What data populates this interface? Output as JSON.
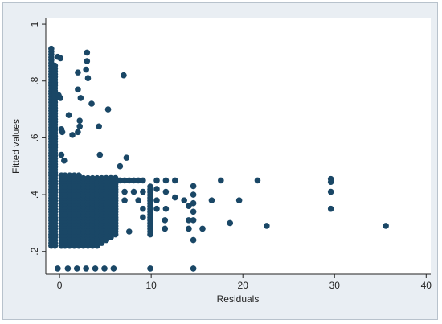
{
  "chart_data": {
    "type": "scatter",
    "xlabel": "Residuals",
    "ylabel": "Fitted values",
    "xlim": [
      -1.5,
      40.5
    ],
    "ylim": [
      0.12,
      1.02
    ],
    "x_ticks": [
      {
        "value": 0,
        "label": "0"
      },
      {
        "value": 10,
        "label": "10"
      },
      {
        "value": 20,
        "label": "20"
      },
      {
        "value": 30,
        "label": "30"
      },
      {
        "value": 40,
        "label": "40"
      }
    ],
    "y_ticks": [
      {
        "value": 0.2,
        "label": ".2"
      },
      {
        "value": 0.4,
        "label": ".4"
      },
      {
        "value": 0.6,
        "label": ".6"
      },
      {
        "value": 0.8,
        "label": ".8"
      },
      {
        "value": 1.0,
        "label": "1"
      }
    ],
    "grid": "none",
    "marker_color": "#1a4766",
    "bands": [
      {
        "x": -0.9,
        "ymin": 0.22,
        "ymax": 0.92
      },
      {
        "x": -0.5,
        "ymin": 0.22,
        "ymax": 0.86
      },
      {
        "x": 0.2,
        "ymin": 0.22,
        "ymax": 0.47
      },
      {
        "x": 0.6,
        "ymin": 0.22,
        "ymax": 0.47
      },
      {
        "x": 1.1,
        "ymin": 0.22,
        "ymax": 0.47
      },
      {
        "x": 1.6,
        "ymin": 0.22,
        "ymax": 0.47
      },
      {
        "x": 2.1,
        "ymin": 0.22,
        "ymax": 0.47
      },
      {
        "x": 2.6,
        "ymin": 0.22,
        "ymax": 0.46
      },
      {
        "x": 3.1,
        "ymin": 0.22,
        "ymax": 0.46
      },
      {
        "x": 3.6,
        "ymin": 0.22,
        "ymax": 0.46
      },
      {
        "x": 4.1,
        "ymin": 0.22,
        "ymax": 0.46
      },
      {
        "x": 4.6,
        "ymin": 0.23,
        "ymax": 0.46
      },
      {
        "x": 5.1,
        "ymin": 0.24,
        "ymax": 0.46
      },
      {
        "x": 5.6,
        "ymin": 0.25,
        "ymax": 0.46
      },
      {
        "x": 6.1,
        "ymin": 0.26,
        "ymax": 0.46
      },
      {
        "x": 9.9,
        "ymin": 0.26,
        "ymax": 0.43
      }
    ],
    "points": [
      {
        "x": -0.2,
        "y": 0.885
      },
      {
        "x": 0.1,
        "y": 0.88
      },
      {
        "x": -0.1,
        "y": 0.75
      },
      {
        "x": 0.1,
        "y": 0.74
      },
      {
        "x": 0.2,
        "y": 0.63
      },
      {
        "x": 0.3,
        "y": 0.62
      },
      {
        "x": 0.2,
        "y": 0.54
      },
      {
        "x": 0.5,
        "y": 0.52
      },
      {
        "x": 1.0,
        "y": 0.68
      },
      {
        "x": 1.4,
        "y": 0.61
      },
      {
        "x": 2.0,
        "y": 0.83
      },
      {
        "x": 2.0,
        "y": 0.77
      },
      {
        "x": 2.3,
        "y": 0.74
      },
      {
        "x": 2.2,
        "y": 0.66
      },
      {
        "x": 2.2,
        "y": 0.64
      },
      {
        "x": 2.0,
        "y": 0.62
      },
      {
        "x": 3.0,
        "y": 0.9
      },
      {
        "x": 3.0,
        "y": 0.87
      },
      {
        "x": 2.9,
        "y": 0.84
      },
      {
        "x": 3.1,
        "y": 0.81
      },
      {
        "x": 3.5,
        "y": 0.72
      },
      {
        "x": 4.3,
        "y": 0.64
      },
      {
        "x": 5.3,
        "y": 0.7
      },
      {
        "x": 4.4,
        "y": 0.54
      },
      {
        "x": 6.6,
        "y": 0.5
      },
      {
        "x": 7.3,
        "y": 0.53
      },
      {
        "x": 7.0,
        "y": 0.82
      },
      {
        "x": 6.6,
        "y": 0.45
      },
      {
        "x": 7.1,
        "y": 0.45
      },
      {
        "x": 7.6,
        "y": 0.45
      },
      {
        "x": 8.1,
        "y": 0.45
      },
      {
        "x": 8.6,
        "y": 0.45
      },
      {
        "x": 9.1,
        "y": 0.45
      },
      {
        "x": 10.6,
        "y": 0.45
      },
      {
        "x": 11.6,
        "y": 0.45
      },
      {
        "x": 12.6,
        "y": 0.45
      },
      {
        "x": 7.1,
        "y": 0.41
      },
      {
        "x": 8.1,
        "y": 0.41
      },
      {
        "x": 9.1,
        "y": 0.41
      },
      {
        "x": 7.1,
        "y": 0.38
      },
      {
        "x": 8.6,
        "y": 0.38
      },
      {
        "x": 9.1,
        "y": 0.35
      },
      {
        "x": 10.6,
        "y": 0.42
      },
      {
        "x": 10.6,
        "y": 0.38
      },
      {
        "x": 10.6,
        "y": 0.35
      },
      {
        "x": 11.6,
        "y": 0.41
      },
      {
        "x": 11.6,
        "y": 0.35
      },
      {
        "x": 11.5,
        "y": 0.31
      },
      {
        "x": 11.5,
        "y": 0.28
      },
      {
        "x": 12.6,
        "y": 0.39
      },
      {
        "x": 13.6,
        "y": 0.38
      },
      {
        "x": 14.1,
        "y": 0.36
      },
      {
        "x": 14.1,
        "y": 0.31
      },
      {
        "x": 14.1,
        "y": 0.28
      },
      {
        "x": 14.6,
        "y": 0.43
      },
      {
        "x": 14.6,
        "y": 0.4
      },
      {
        "x": 14.6,
        "y": 0.37
      },
      {
        "x": 14.6,
        "y": 0.34
      },
      {
        "x": 14.6,
        "y": 0.31
      },
      {
        "x": 14.6,
        "y": 0.24
      },
      {
        "x": 15.6,
        "y": 0.28
      },
      {
        "x": 7.6,
        "y": 0.27
      },
      {
        "x": 9.1,
        "y": 0.32
      },
      {
        "x": 16.6,
        "y": 0.38
      },
      {
        "x": 17.6,
        "y": 0.45
      },
      {
        "x": 18.6,
        "y": 0.3
      },
      {
        "x": 19.6,
        "y": 0.38
      },
      {
        "x": 21.6,
        "y": 0.45
      },
      {
        "x": 22.6,
        "y": 0.29
      },
      {
        "x": 29.6,
        "y": 0.455
      },
      {
        "x": 29.6,
        "y": 0.445
      },
      {
        "x": 29.6,
        "y": 0.41
      },
      {
        "x": 29.6,
        "y": 0.35
      },
      {
        "x": 35.6,
        "y": 0.29
      },
      {
        "x": -0.2,
        "y": 0.14
      },
      {
        "x": 0.9,
        "y": 0.14
      },
      {
        "x": 1.9,
        "y": 0.14
      },
      {
        "x": 2.9,
        "y": 0.14
      },
      {
        "x": 3.9,
        "y": 0.14
      },
      {
        "x": 4.9,
        "y": 0.14
      },
      {
        "x": 5.9,
        "y": 0.14
      },
      {
        "x": 9.9,
        "y": 0.14
      },
      {
        "x": 14.6,
        "y": 0.14
      }
    ]
  }
}
